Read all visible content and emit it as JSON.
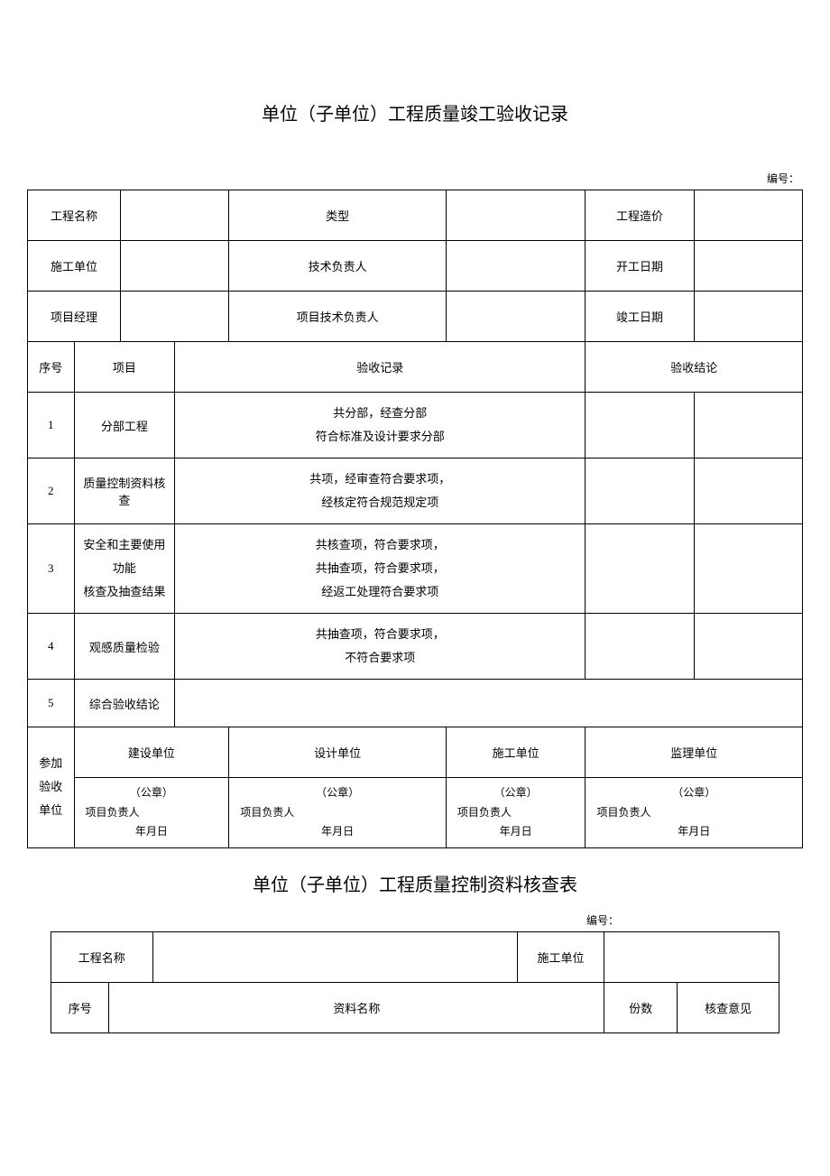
{
  "title1": "单位（子单位）工程质量竣工验收记录",
  "docNoLabel": "编号：",
  "header": {
    "r1c1": "工程名称",
    "r1c2": "类型",
    "r1c3": "工程造价",
    "r2c1": "施工单位",
    "r2c2": "技术负责人",
    "r2c3": "开工日期",
    "r3c1": "项目经理",
    "r3c2": "项目技术负责人",
    "r3c3": "竣工日期"
  },
  "cols": {
    "no": "序号",
    "item": "项目",
    "record": "验收记录",
    "result": "验收结论"
  },
  "rows": [
    {
      "no": "1",
      "item": "分部工程",
      "record": "共分部，经查分部\n符合标准及设计要求分部"
    },
    {
      "no": "2",
      "item": "质量控制资料核查",
      "record": "共项，经审查符合要求项，\n经核定符合规范规定项"
    },
    {
      "no": "3",
      "item": "安全和主要使用功能\n核查及抽查结果",
      "record": "共核查项，符合要求项，\n共抽查项，符合要求项，\n经返工处理符合要求项"
    },
    {
      "no": "4",
      "item": "观感质量检验",
      "record": "共抽查项，符合要求项，\n不符合要求项"
    },
    {
      "no": "5",
      "item": "综合验收结论",
      "record": ""
    }
  ],
  "footer": {
    "label": "参加验收\n单位",
    "parties": [
      "建设单位",
      "设计单位",
      "施工单位",
      "监理单位"
    ],
    "seal": "（公章）",
    "pm": "项目负责人",
    "date": "年月日"
  },
  "title2": "单位（子单位）工程质量控制资料核查表",
  "t2header": {
    "name": "工程名称",
    "unit": "施工单位"
  },
  "t2cols": {
    "no": "序号",
    "mat": "资料名称",
    "copies": "份数",
    "opinion": "核查意见"
  }
}
